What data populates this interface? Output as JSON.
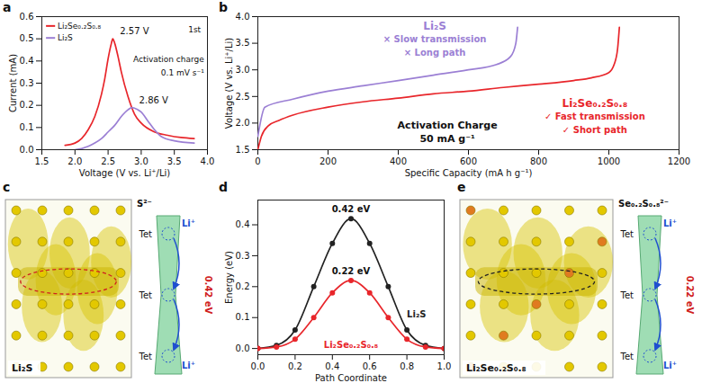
{
  "chart_data": [
    {
      "panel": "a",
      "type": "line",
      "x_label": "Voltage (V vs. Li⁺/Li)",
      "y_label": "Current (mA)",
      "xlim": [
        1.5,
        4.0
      ],
      "xticks": [
        1.5,
        {
          "value": 2,
          "label": "2.0"
        },
        2.5,
        {
          "value": 3,
          "label": "3.0"
        },
        3.5,
        {
          "value": 4,
          "label": "4.0"
        }
      ],
      "ylim": [
        0,
        0.6
      ],
      "yticks": [
        {
          "value": 0,
          "label": "0.0"
        },
        0.1,
        0.2,
        0.3,
        0.4,
        0.5,
        0.6
      ],
      "legend": "top-left",
      "annotations": [
        "1st",
        "Activation charge",
        "0.1 mV s⁻¹"
      ],
      "series": [
        {
          "name": "Li₂Se₀.₂S₀.₈",
          "color": "#e8262b",
          "annotation": "2.57 V",
          "x": [
            1.85,
            2.0,
            2.1,
            2.2,
            2.3,
            2.4,
            2.45,
            2.5,
            2.55,
            2.57,
            2.6,
            2.65,
            2.7,
            2.8,
            2.9,
            3.0,
            3.2,
            3.4,
            3.6,
            3.8
          ],
          "values": [
            0.02,
            0.03,
            0.05,
            0.09,
            0.15,
            0.25,
            0.32,
            0.41,
            0.48,
            0.5,
            0.48,
            0.42,
            0.35,
            0.24,
            0.16,
            0.12,
            0.08,
            0.065,
            0.055,
            0.05
          ]
        },
        {
          "name": "Li₂S",
          "color": "#9b7fd4",
          "annotation": "2.86 V",
          "x": [
            2.0,
            2.1,
            2.2,
            2.3,
            2.4,
            2.5,
            2.6,
            2.7,
            2.8,
            2.86,
            2.95,
            3.0,
            3.1,
            3.2,
            3.3,
            3.5,
            3.8
          ],
          "values": [
            0.0,
            0.005,
            0.015,
            0.03,
            0.05,
            0.08,
            0.11,
            0.15,
            0.18,
            0.19,
            0.18,
            0.17,
            0.13,
            0.09,
            0.06,
            0.04,
            0.03
          ]
        }
      ]
    },
    {
      "panel": "b",
      "type": "line",
      "x_label": "Specific Capacity (mA h g⁻¹)",
      "y_label": "Voltage (V vs. Li⁺/Li)",
      "xlim": [
        0,
        1200
      ],
      "xticks": [
        0,
        200,
        400,
        600,
        800,
        1000,
        1200
      ],
      "ylim": [
        1.5,
        4.0
      ],
      "yticks": [
        1.5,
        {
          "value": 2,
          "label": "2.0"
        },
        2.5,
        {
          "value": 3,
          "label": "3.0"
        },
        3.5,
        {
          "value": 4,
          "label": "4.0"
        }
      ],
      "annotations": [
        "Activation Charge",
        "50 mA g⁻¹"
      ],
      "series": [
        {
          "name": "Li₂S",
          "color": "#9b7fd4",
          "notes": [
            "× Slow transmission",
            "× Long path"
          ],
          "x": [
            0,
            20,
            100,
            200,
            300,
            400,
            500,
            600,
            680,
            720,
            735,
            740
          ],
          "values": [
            1.75,
            2.3,
            2.45,
            2.6,
            2.7,
            2.8,
            2.9,
            3.0,
            3.1,
            3.25,
            3.5,
            3.8
          ]
        },
        {
          "name": "Li₂Se₀.₂S₀.₈",
          "color": "#e8262b",
          "notes": [
            "✓ Fast transmission",
            "✓ Short path"
          ],
          "x": [
            0,
            10,
            30,
            60,
            100,
            200,
            300,
            400,
            500,
            600,
            700,
            800,
            900,
            950,
            1000,
            1015,
            1025,
            1030
          ],
          "values": [
            1.5,
            1.75,
            1.95,
            2.05,
            2.15,
            2.3,
            2.4,
            2.47,
            2.55,
            2.6,
            2.67,
            2.73,
            2.8,
            2.85,
            2.95,
            3.1,
            3.4,
            3.8
          ]
        }
      ]
    },
    {
      "panel": "d",
      "type": "line",
      "x_label": "Path Coordinate",
      "y_label": "Energy (eV)",
      "xlim": [
        0,
        1
      ],
      "xticks": [
        {
          "value": 0,
          "label": "0.0"
        },
        0.2,
        0.4,
        0.6,
        0.8,
        {
          "value": 1,
          "label": "1.0"
        }
      ],
      "ylim": [
        -0.02,
        0.48
      ],
      "yticks": [
        {
          "value": 0,
          "label": "0.0"
        },
        0.1,
        0.2,
        0.3,
        0.4
      ],
      "series": [
        {
          "name": "Li₂S",
          "color": "#222222",
          "marker": "circle",
          "annotation": "0.42 eV",
          "x": [
            0,
            0.1,
            0.2,
            0.3,
            0.4,
            0.5,
            0.6,
            0.7,
            0.8,
            0.9,
            1.0
          ],
          "values": [
            0,
            0.01,
            0.06,
            0.2,
            0.34,
            0.42,
            0.34,
            0.2,
            0.06,
            0.01,
            0
          ]
        },
        {
          "name": "Li₂Se₀.₂S₀.₈",
          "color": "#e8262b",
          "marker": "circle",
          "annotation": "0.22 eV",
          "x": [
            0,
            0.1,
            0.2,
            0.3,
            0.4,
            0.5,
            0.6,
            0.7,
            0.8,
            0.9,
            1.0
          ],
          "values": [
            0,
            0.005,
            0.03,
            0.1,
            0.18,
            0.22,
            0.18,
            0.1,
            0.03,
            0.005,
            0
          ]
        }
      ]
    }
  ],
  "diagrams": [
    {
      "panel": "c",
      "title": "Li₂S",
      "ion_label": "S²⁻",
      "site_labels": [
        "Tet",
        "Tet",
        "Tet"
      ],
      "carrier_labels": [
        "Li⁺",
        "Li⁺"
      ],
      "barrier": "0.42 eV"
    },
    {
      "panel": "e",
      "title": "Li₂Se₀.₂S₀.₈",
      "ion_label": "Se₀.₂S₀.₈²⁻",
      "site_labels": [
        "Tet",
        "Tet",
        "Tet"
      ],
      "carrier_labels": [
        "Li⁺",
        "Li⁺"
      ],
      "barrier": "0.22 eV"
    }
  ]
}
